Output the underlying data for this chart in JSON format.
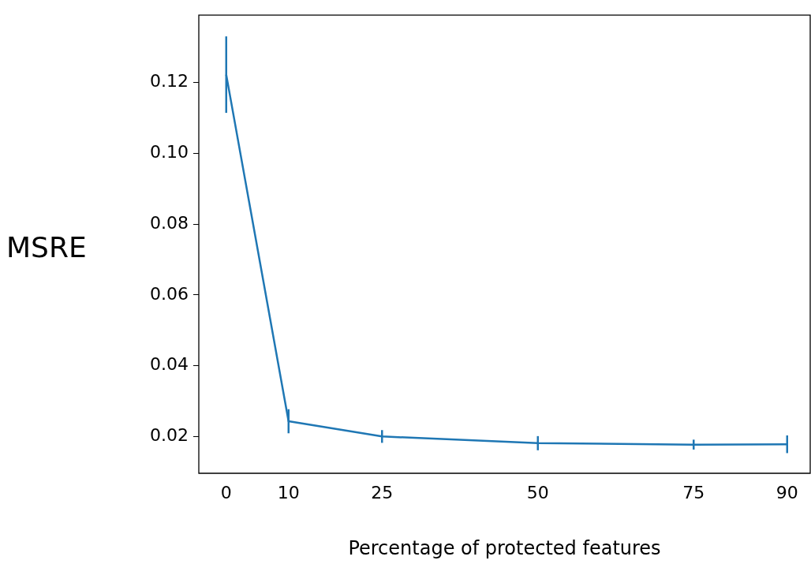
{
  "chart_data": {
    "type": "line",
    "xlabel": "Percentage of protected features",
    "ylabel": "MSRE",
    "x": [
      0,
      10,
      25,
      50,
      75,
      90
    ],
    "series": [
      {
        "color": "#1f77b4",
        "values": [
          0.1222,
          0.0243,
          0.02,
          0.0181,
          0.0177,
          0.0178
        ],
        "errors": [
          0.0108,
          0.0034,
          0.0018,
          0.002,
          0.0014,
          0.0025
        ]
      }
    ],
    "xlim": [
      -4.4,
      93.7
    ],
    "xticks": [
      0,
      10,
      25,
      50,
      75,
      90
    ],
    "ylim": [
      0.0096,
      0.139
    ],
    "yticks": [
      {
        "value": 0.02,
        "label": "0.02"
      },
      {
        "value": 0.04,
        "label": "0.04"
      },
      {
        "value": 0.06,
        "label": "0.06"
      },
      {
        "value": 0.08,
        "label": "0.08"
      },
      {
        "value": 0.1,
        "label": "0.10"
      },
      {
        "value": 0.12,
        "label": "0.12"
      }
    ],
    "grid": false,
    "legend": false,
    "marker": "none",
    "line_style": "solid"
  }
}
